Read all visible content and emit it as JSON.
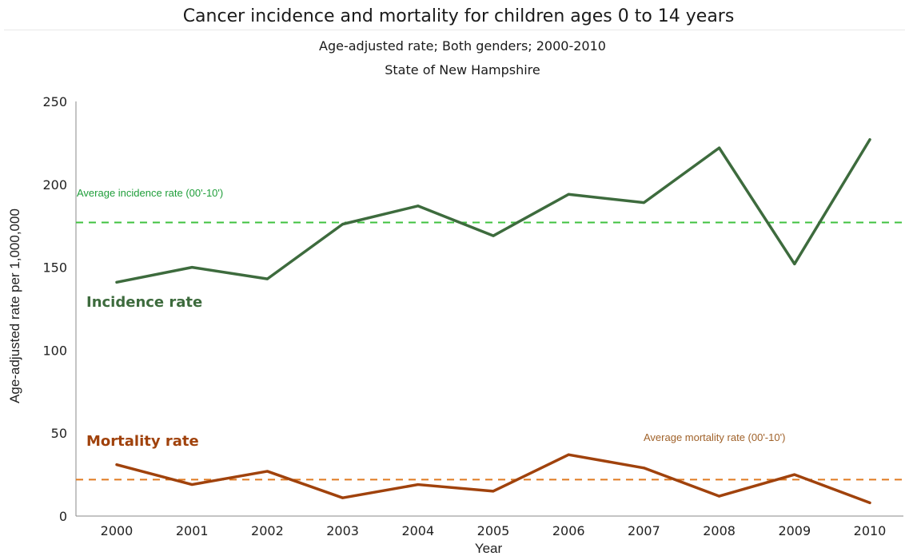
{
  "chart_data": {
    "type": "line",
    "title": "Cancer incidence and mortality for children ages 0 to 14 years",
    "subtitle": "Age-adjusted rate; Both genders; 2000-2010",
    "subtitle2": "State of New Hampshire",
    "xlabel": "Year",
    "ylabel": "Age-adjusted rate per 1,000,000",
    "ylim": [
      0,
      250
    ],
    "yticks": [
      0,
      50,
      100,
      150,
      200,
      250
    ],
    "x": [
      "2000",
      "2001",
      "2002",
      "2003",
      "2004",
      "2005",
      "2006",
      "2007",
      "2008",
      "2009",
      "2010"
    ],
    "grid": false,
    "series": [
      {
        "name": "Incidence rate",
        "color": "#3d6b3d",
        "values": [
          141,
          150,
          143,
          176,
          187,
          169,
          194,
          189,
          222,
          152,
          227
        ]
      },
      {
        "name": "Mortality rate",
        "color": "#a0420c",
        "values": [
          31,
          19,
          27,
          11,
          19,
          15,
          37,
          29,
          12,
          25,
          8
        ]
      }
    ],
    "reference_lines": [
      {
        "label": "Average incidence rate (00'-10')",
        "value": 177,
        "color": "#3fc23f",
        "text_color": "#1f9e3a"
      },
      {
        "label": "Average mortality rate (00'-10')",
        "value": 22,
        "color": "#e07a20",
        "text_color": "#a0622a"
      }
    ]
  }
}
